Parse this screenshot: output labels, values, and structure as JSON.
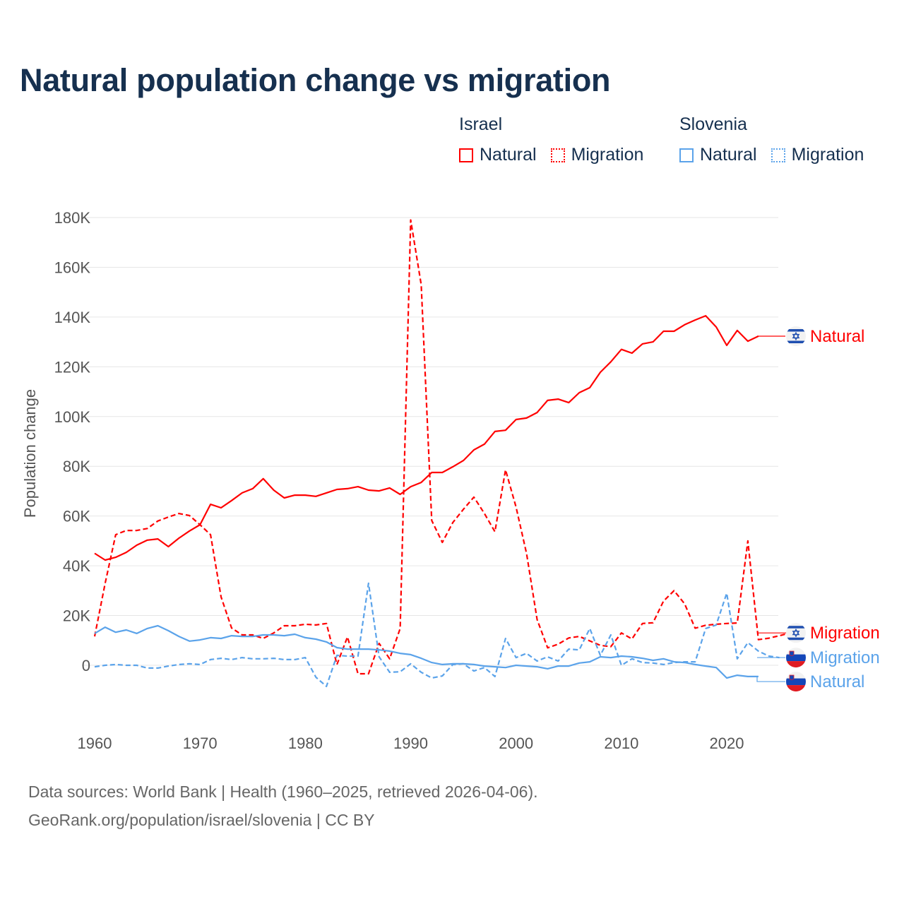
{
  "chart_data": {
    "type": "line",
    "title": "Natural population change vs migration",
    "xlabel": "",
    "ylabel": "Population change",
    "xlim": [
      1960,
      2025
    ],
    "ylim": [
      -10000,
      180000
    ],
    "x_ticks": [
      1960,
      1970,
      1980,
      1990,
      2000,
      2010,
      2020
    ],
    "y_ticks": [
      0,
      20000,
      40000,
      60000,
      80000,
      100000,
      120000,
      140000,
      160000,
      180000
    ],
    "y_tick_labels": [
      "0",
      "20K",
      "40K",
      "60K",
      "80K",
      "100K",
      "120K",
      "140K",
      "160K",
      "180K"
    ],
    "x_tick_labels": [
      "1960",
      "1970",
      "1980",
      "1990",
      "2000",
      "2010",
      "2020"
    ],
    "grid": true,
    "legend_placement": "top-right",
    "legend_groups": [
      {
        "country": "Israel",
        "items": [
          "Natural",
          "Migration"
        ],
        "color": "#ff0000"
      },
      {
        "country": "Slovenia",
        "items": [
          "Natural",
          "Migration"
        ],
        "color": "#5ba3ea"
      }
    ],
    "series": [
      {
        "name": "Israel Natural",
        "country": "Israel",
        "kind": "Natural",
        "color": "#ff0000",
        "dash": false,
        "start_year": 1960,
        "label": "Natural",
        "flag": "israel-flag",
        "values": [
          45000,
          42300,
          43400,
          45400,
          48300,
          50300,
          50800,
          47700,
          51100,
          54000,
          56500,
          64700,
          63300,
          66200,
          69300,
          71000,
          75000,
          70400,
          67300,
          68400,
          68400,
          67900,
          69300,
          70700,
          71000,
          71800,
          70400,
          70100,
          71300,
          68700,
          71800,
          73500,
          77500,
          77500,
          79800,
          82300,
          86600,
          88900,
          94000,
          94500,
          98800,
          99400,
          101600,
          106500,
          107000,
          105600,
          109600,
          111600,
          117800,
          122000,
          127000,
          125500,
          129200,
          130000,
          134300,
          134300,
          136900,
          138800,
          140500,
          136000,
          128600,
          134600,
          130300,
          132300
        ]
      },
      {
        "name": "Israel Migration",
        "country": "Israel",
        "kind": "Migration",
        "color": "#ff0000",
        "dash": true,
        "start_year": 1960,
        "label": "Migration",
        "flag": "israel-flag",
        "values": [
          11600,
          33000,
          52500,
          54200,
          54200,
          55000,
          58000,
          59600,
          61000,
          60200,
          56500,
          52500,
          27500,
          15000,
          12200,
          12200,
          10800,
          13000,
          15900,
          15900,
          16500,
          16200,
          16800,
          300,
          11400,
          -3400,
          -3400,
          8800,
          2600,
          14800,
          179000,
          153000,
          58200,
          49400,
          57400,
          62700,
          67600,
          61000,
          53700,
          78600,
          63600,
          44900,
          18400,
          7000,
          8500,
          11000,
          11600,
          9800,
          8000,
          7500,
          13000,
          10600,
          16800,
          17100,
          25800,
          30000,
          24700,
          14900,
          16100,
          16500,
          16800,
          17000,
          50000,
          10300,
          10900,
          11900,
          13000
        ]
      },
      {
        "name": "Slovenia Natural",
        "country": "Slovenia",
        "kind": "Natural",
        "color": "#5ba3ea",
        "dash": false,
        "start_year": 1960,
        "label": "Natural",
        "flag": "slovenia-flag",
        "values": [
          12800,
          15300,
          13300,
          14200,
          12800,
          14800,
          15900,
          13900,
          11600,
          9700,
          10200,
          11100,
          10800,
          11900,
          11600,
          11600,
          12200,
          12200,
          11900,
          12500,
          11100,
          10500,
          9400,
          7100,
          6500,
          6500,
          6500,
          6200,
          5700,
          4800,
          4300,
          2800,
          1100,
          300,
          600,
          600,
          300,
          -300,
          -600,
          -900,
          0,
          -300,
          -600,
          -1400,
          -300,
          -300,
          900,
          1400,
          3400,
          3100,
          3700,
          3400,
          2800,
          2000,
          2600,
          1400,
          1100,
          300,
          -300,
          -900,
          -5100,
          -4000,
          -4500,
          -4500
        ]
      },
      {
        "name": "Slovenia Migration",
        "country": "Slovenia",
        "kind": "Migration",
        "color": "#5ba3ea",
        "dash": true,
        "start_year": 1960,
        "label": "Migration",
        "flag": "slovenia-flag",
        "values": [
          -600,
          0,
          300,
          0,
          0,
          -1100,
          -1100,
          -300,
          300,
          600,
          300,
          2300,
          2800,
          2300,
          3100,
          2600,
          2600,
          2800,
          2300,
          2300,
          3100,
          -4800,
          -8500,
          4000,
          3700,
          3700,
          33000,
          3400,
          -2800,
          -2600,
          600,
          -2800,
          -5100,
          -4300,
          300,
          600,
          -2300,
          -900,
          -4500,
          10800,
          3100,
          4800,
          1700,
          3400,
          1700,
          6500,
          6200,
          14800,
          4000,
          12200,
          0,
          2600,
          1100,
          900,
          300,
          1100,
          1400,
          1400,
          14800,
          16200,
          29000,
          2600,
          9100,
          5700,
          3700,
          3100
        ]
      }
    ]
  },
  "legend": {
    "israel": {
      "group": "Israel",
      "natural": "Natural",
      "migration": "Migration"
    },
    "slovenia": {
      "group": "Slovenia",
      "natural": "Natural",
      "migration": "Migration"
    }
  },
  "footer": {
    "line1": "Data sources: World Bank | Health (1960–2025, retrieved 2026-04-06).",
    "line2": "GeoRank.org/population/israel/slovenia | CC BY"
  },
  "colors": {
    "israel": "#ff0000",
    "slovenia": "#5ba3ea",
    "title": "#16304f",
    "grid": "#e6e6e6"
  }
}
